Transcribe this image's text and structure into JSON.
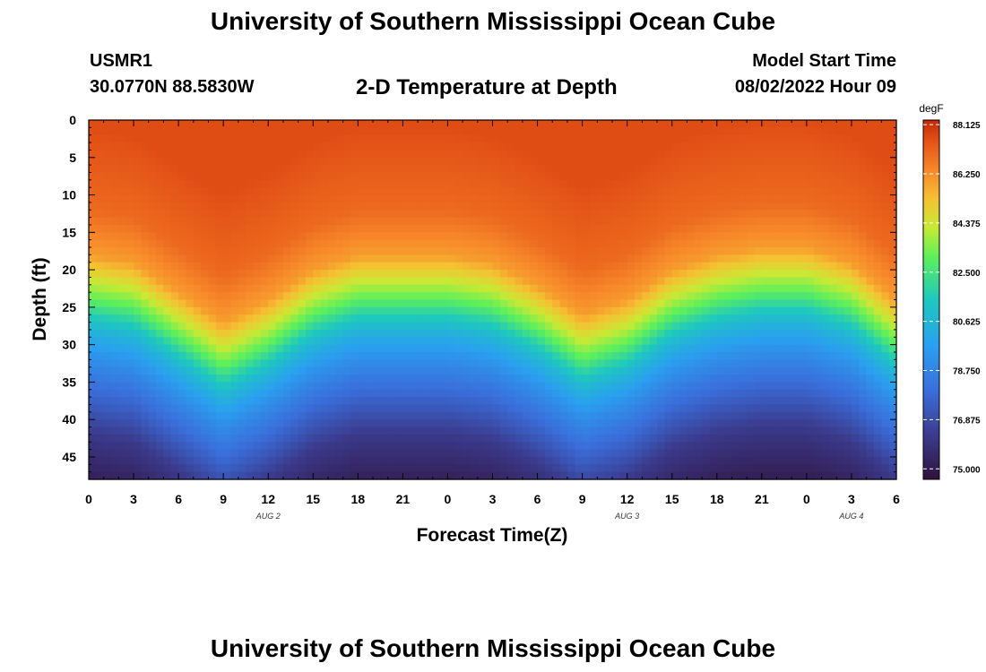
{
  "header": {
    "title": "University of Southern Mississippi Ocean Cube",
    "station": "USMR1",
    "coordinates": "30.0770N  88.5830W",
    "subtitle": "2-D Temperature at Depth",
    "model_start_label": "Model Start Time",
    "model_start_value": "08/02/2022 Hour 09"
  },
  "footer": {
    "title": "University of Southern Mississippi Ocean Cube"
  },
  "chart_data": {
    "type": "heatmap",
    "title": "2-D Temperature at Depth",
    "xlabel": "Forecast Time(Z)",
    "ylabel": "Depth (ft)",
    "x_hours_range": [
      0,
      54
    ],
    "x_tick_hours": [
      0,
      3,
      6,
      9,
      12,
      15,
      18,
      21,
      24,
      27,
      30,
      33,
      36,
      39,
      42,
      45,
      48,
      51,
      54
    ],
    "x_tick_labels": [
      "0",
      "3",
      "6",
      "9",
      "12",
      "15",
      "18",
      "21",
      "0",
      "3",
      "6",
      "9",
      "12",
      "15",
      "18",
      "21",
      "0",
      "3",
      "6"
    ],
    "date_labels": [
      {
        "hour": 12,
        "text": "AUG 2"
      },
      {
        "hour": 36,
        "text": "AUG 3"
      },
      {
        "hour": 51,
        "text": "AUG 4"
      }
    ],
    "y_range": [
      0,
      48
    ],
    "y_ticks": [
      0,
      5,
      10,
      15,
      20,
      25,
      30,
      35,
      40,
      45
    ],
    "y_tick_labels": [
      "0",
      "5",
      "10",
      "15",
      "20",
      "25",
      "30",
      "35",
      "40",
      "45"
    ],
    "colorbar": {
      "units": "degF",
      "min": 74.6,
      "max": 88.3,
      "ticks": [
        88.125,
        86.25,
        84.375,
        82.5,
        80.625,
        78.75,
        76.875,
        75.0
      ],
      "tick_labels": [
        "88.125",
        "86.250",
        "84.375",
        "82.500",
        "80.625",
        "78.750",
        "76.875",
        "75.000"
      ]
    },
    "thermocline_depth_ft": [
      {
        "hour": 0,
        "depth": 26
      },
      {
        "hour": 3,
        "depth": 27
      },
      {
        "hour": 6,
        "depth": 31
      },
      {
        "hour": 9,
        "depth": 35
      },
      {
        "hour": 12,
        "depth": 32
      },
      {
        "hour": 15,
        "depth": 28
      },
      {
        "hour": 18,
        "depth": 26
      },
      {
        "hour": 21,
        "depth": 26
      },
      {
        "hour": 24,
        "depth": 26
      },
      {
        "hour": 27,
        "depth": 27
      },
      {
        "hour": 30,
        "depth": 30
      },
      {
        "hour": 33,
        "depth": 34
      },
      {
        "hour": 36,
        "depth": 32
      },
      {
        "hour": 39,
        "depth": 28
      },
      {
        "hour": 42,
        "depth": 26
      },
      {
        "hour": 45,
        "depth": 25
      },
      {
        "hour": 48,
        "depth": 25
      },
      {
        "hour": 51,
        "depth": 27
      },
      {
        "hour": 54,
        "depth": 32
      }
    ],
    "profile_degF": [
      {
        "offset_ft": -25,
        "temp": 87.6
      },
      {
        "offset_ft": -14,
        "temp": 87.0
      },
      {
        "offset_ft": -8,
        "temp": 86.0
      },
      {
        "offset_ft": -5,
        "temp": 84.5
      },
      {
        "offset_ft": -2,
        "temp": 83.0
      },
      {
        "offset_ft": 0,
        "temp": 81.7
      },
      {
        "offset_ft": 2,
        "temp": 80.6
      },
      {
        "offset_ft": 5,
        "temp": 79.4
      },
      {
        "offset_ft": 8,
        "temp": 78.5
      },
      {
        "offset_ft": 12,
        "temp": 77.4
      },
      {
        "offset_ft": 16,
        "temp": 76.2
      },
      {
        "offset_ft": 22,
        "temp": 75.2
      },
      {
        "offset_ft": 30,
        "temp": 74.8
      }
    ]
  }
}
